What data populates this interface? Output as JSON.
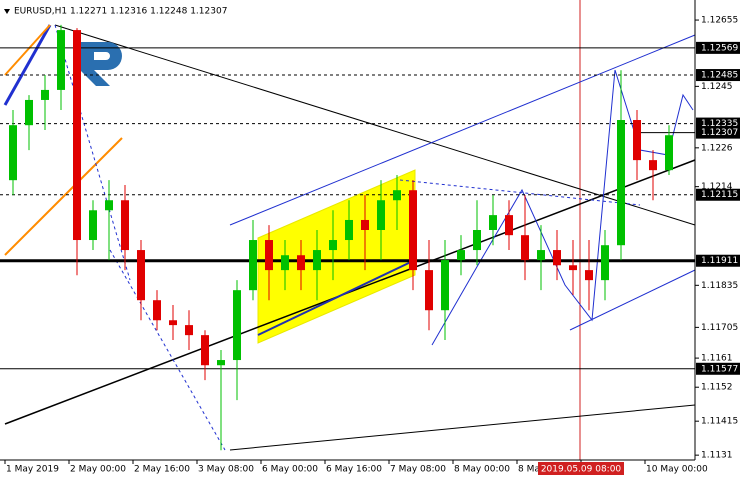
{
  "chart_data": {
    "type": "candlestick",
    "title": "EURUSD,H1  1.12271 1.12316 1.12248 1.12307",
    "categories": [
      "1 May 2019",
      null,
      null,
      null,
      "2 May 00:00",
      null,
      null,
      null,
      "2 May 16:00",
      null,
      null,
      null,
      "3 May 08:00",
      null,
      null,
      null,
      "6 May 00:00",
      null,
      null,
      null,
      "6 May 16:00",
      null,
      null,
      null,
      "7 May 08:00",
      null,
      null,
      null,
      "8 May 00:00",
      null,
      null,
      null,
      "8 May",
      null,
      null,
      null,
      "2019.05.09 08:00",
      null,
      null,
      null,
      "10 May 00:00",
      null
    ],
    "highlight_category": 36,
    "open": [
      1.1216,
      1.1233,
      1.12408,
      1.12439,
      1.12624,
      1.11975,
      1.12067,
      1.12098,
      1.11944,
      1.11789,
      1.11727,
      1.11712,
      1.11681,
      1.11588,
      1.11604,
      1.1182,
      1.11975,
      1.11882,
      1.11928,
      1.11882,
      1.11944,
      1.11975,
      1.12037,
      1.12006,
      1.12098,
      1.12129,
      1.11882,
      1.11758,
      1.11913,
      1.11944,
      1.12006,
      1.12052,
      1.1199,
      1.11913,
      1.11944,
      1.11897,
      1.11882,
      1.11851,
      1.11959,
      1.12346,
      1.12222,
      1.12191
    ],
    "high": [
      1.12377,
      1.12423,
      1.12485,
      1.1264,
      1.1263,
      1.12098,
      1.1216,
      1.12145,
      1.11975,
      1.1182,
      1.11774,
      1.11758,
      1.11696,
      1.11635,
      1.11851,
      1.12037,
      1.12021,
      1.11975,
      1.11975,
      1.12006,
      1.12067,
      1.12098,
      1.12114,
      1.1216,
      1.12176,
      1.1216,
      1.11975,
      1.11975,
      1.1199,
      1.12098,
      1.12114,
      1.12098,
      1.12114,
      1.12021,
      1.12006,
      1.11975,
      1.11975,
      1.12006,
      1.125,
      1.12377,
      1.12253,
      1.1233
    ],
    "low": [
      1.12114,
      1.12253,
      1.12315,
      1.12377,
      1.11866,
      1.11944,
      1.11913,
      1.11882,
      1.11727,
      1.11696,
      1.11666,
      1.11635,
      1.11542,
      1.11325,
      1.1148,
      1.11789,
      1.11789,
      1.1182,
      1.1182,
      1.11789,
      1.11851,
      1.11913,
      1.11882,
      1.11913,
      1.12006,
      1.1182,
      1.11696,
      1.11666,
      1.11866,
      1.11897,
      1.11959,
      1.11944,
      1.11851,
      1.1182,
      1.11851,
      1.11805,
      1.11758,
      1.11789,
      1.11913,
      1.1216,
      1.12098,
      1.12176
    ],
    "close": [
      1.1233,
      1.12408,
      1.12439,
      1.12624,
      1.11975,
      1.12067,
      1.12098,
      1.11944,
      1.11789,
      1.11727,
      1.11712,
      1.11681,
      1.11588,
      1.11604,
      1.1182,
      1.11975,
      1.11882,
      1.11928,
      1.11882,
      1.11944,
      1.11975,
      1.12037,
      1.12006,
      1.12098,
      1.12129,
      1.11882,
      1.11758,
      1.11913,
      1.11944,
      1.12006,
      1.12052,
      1.1199,
      1.11913,
      1.11944,
      1.11897,
      1.11882,
      1.11851,
      1.11959,
      1.12346,
      1.12222,
      1.12191,
      1.12299
    ],
    "up_color": "#00c000",
    "down_color": "#e00000",
    "ylim": [
      1.11295,
      1.12717
    ],
    "yticks": [
      1.12655,
      1.1245,
      1.1226,
      1.1214,
      1.11835,
      1.11705,
      1.1161,
      1.1152,
      1.11415,
      1.1131
    ],
    "levels": [
      {
        "value": 1.12569,
        "style": "solid"
      },
      {
        "value": 1.12485,
        "style": "dashed"
      },
      {
        "value": 1.12335,
        "style": "dashed"
      },
      {
        "value": 1.12307,
        "style": "short"
      },
      {
        "value": 1.12115,
        "style": "dashed"
      },
      {
        "value": 1.11911,
        "style": "thick"
      },
      {
        "value": 1.11577,
        "style": "solid"
      }
    ]
  }
}
